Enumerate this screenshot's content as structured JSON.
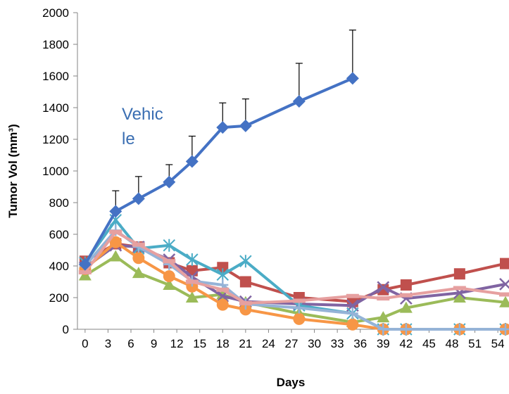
{
  "chart_data": {
    "type": "line",
    "xlabel": "Days",
    "ylabel": "Tumor Vol (mm³)",
    "xticks": [
      0,
      3,
      6,
      9,
      12,
      15,
      18,
      21,
      24,
      27,
      30,
      33,
      36,
      39,
      42,
      45,
      48,
      51,
      54
    ],
    "xlim": [
      -1,
      55
    ],
    "ylim": [
      0,
      2000
    ],
    "yticks": [
      0,
      200,
      400,
      600,
      800,
      1000,
      1200,
      1400,
      1600,
      1800,
      2000
    ],
    "grid": false,
    "annotation": {
      "text_line1": "Vehic",
      "text_line2": "le"
    },
    "series": [
      {
        "color": "#4472c4",
        "marker": "diamond",
        "x": [
          0,
          4,
          7,
          11,
          14,
          18,
          21,
          28,
          35
        ],
        "y": [
          410,
          745,
          825,
          930,
          1060,
          1275,
          1285,
          1440,
          1585
        ],
        "error": [
          0,
          130,
          140,
          110,
          160,
          155,
          170,
          240,
          305
        ]
      },
      {
        "color": "#c0504d",
        "marker": "square",
        "x": [
          0,
          4,
          7,
          11,
          14,
          18,
          21,
          28,
          35,
          39,
          42,
          49,
          55
        ],
        "y": [
          430,
          540,
          520,
          420,
          370,
          390,
          300,
          200,
          175,
          250,
          280,
          350,
          415
        ]
      },
      {
        "color": "#9bbb59",
        "marker": "triangle",
        "x": [
          0,
          4,
          7,
          11,
          14,
          18,
          21,
          28,
          35,
          39,
          42,
          49,
          55
        ],
        "y": [
          340,
          460,
          355,
          280,
          200,
          220,
          170,
          100,
          45,
          75,
          135,
          200,
          170
        ]
      },
      {
        "color": "#8064a2",
        "marker": "x",
        "x": [
          0,
          4,
          7,
          11,
          14,
          18,
          21,
          28,
          35,
          39,
          42,
          49,
          55
        ],
        "y": [
          390,
          530,
          520,
          440,
          330,
          210,
          175,
          160,
          150,
          265,
          195,
          230,
          285
        ]
      },
      {
        "color": "#4bacc6",
        "marker": "star",
        "x": [
          0,
          4,
          7,
          11,
          14,
          18,
          21,
          28,
          35,
          39,
          42,
          49,
          55
        ],
        "y": [
          420,
          690,
          510,
          530,
          440,
          345,
          430,
          150,
          100,
          0,
          0,
          0,
          0
        ]
      },
      {
        "color": "#f79646",
        "marker": "circle",
        "x": [
          0,
          4,
          7,
          11,
          14,
          18,
          21,
          28,
          35,
          39,
          42,
          49,
          55
        ],
        "y": [
          380,
          550,
          450,
          335,
          270,
          155,
          125,
          65,
          30,
          0,
          0,
          0,
          0
        ]
      },
      {
        "color": "#95b3d7",
        "marker": "plus",
        "x": [
          0,
          4,
          7,
          11,
          14,
          18,
          21,
          28,
          35,
          39,
          42,
          49,
          55
        ],
        "y": [
          400,
          625,
          520,
          410,
          305,
          280,
          160,
          135,
          100,
          0,
          0,
          0,
          0
        ]
      },
      {
        "color": "#e6a0a0",
        "marker": "dash",
        "x": [
          0,
          4,
          7,
          11,
          14,
          18,
          21,
          28,
          35,
          39,
          42,
          49,
          55
        ],
        "y": [
          360,
          615,
          535,
          430,
          300,
          250,
          165,
          180,
          210,
          195,
          215,
          260,
          220
        ]
      }
    ]
  }
}
